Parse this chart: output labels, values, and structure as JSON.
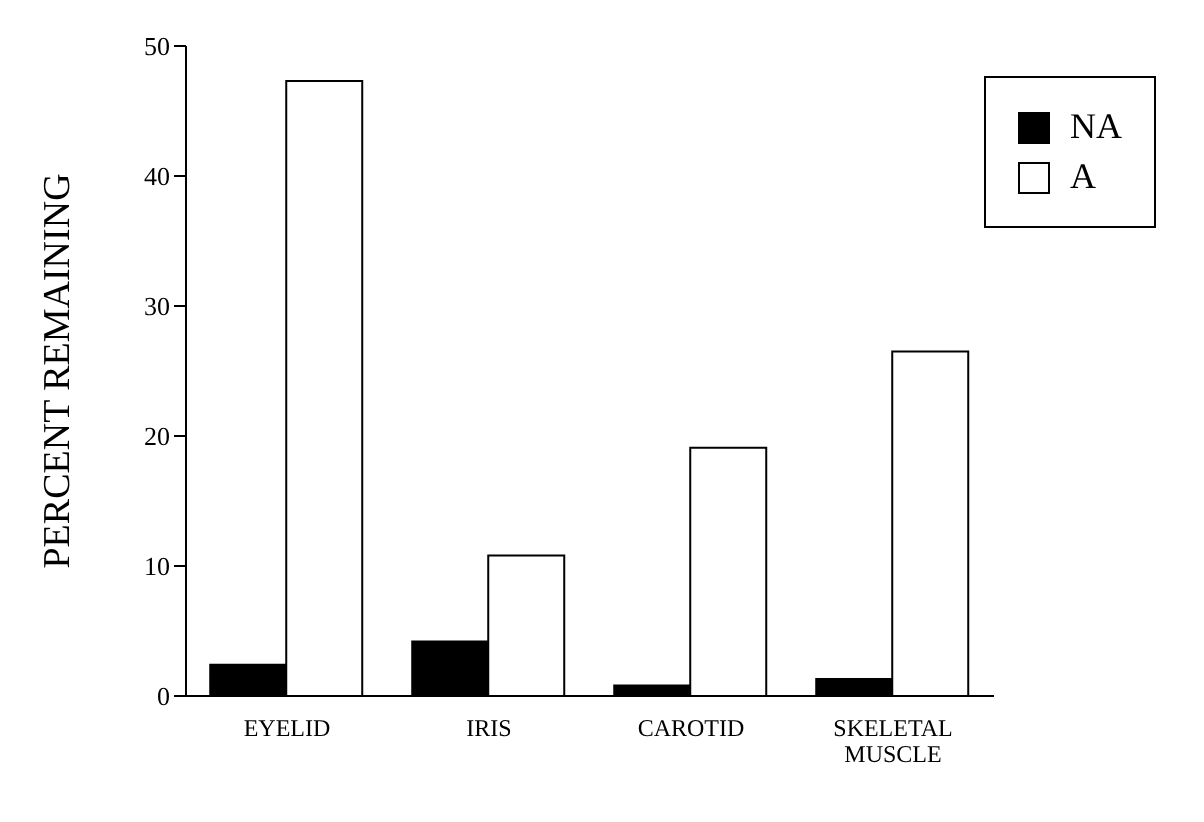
{
  "chart_data": {
    "type": "bar",
    "ylabel": "PERCENT REMAINING",
    "categories": [
      "EYELID",
      "IRIS",
      "CAROTID",
      "SKELETAL MUSCLE"
    ],
    "series": [
      {
        "name": "NA",
        "color": "#000000",
        "values": [
          2.4,
          4.2,
          0.8,
          1.3
        ]
      },
      {
        "name": "A",
        "color": "#ffffff",
        "values": [
          47.3,
          10.8,
          19.1,
          26.5
        ]
      }
    ],
    "ylim": [
      0,
      50
    ],
    "yticks": [
      0,
      10,
      20,
      30,
      40,
      50
    ],
    "grid": false,
    "legend": "top right"
  }
}
